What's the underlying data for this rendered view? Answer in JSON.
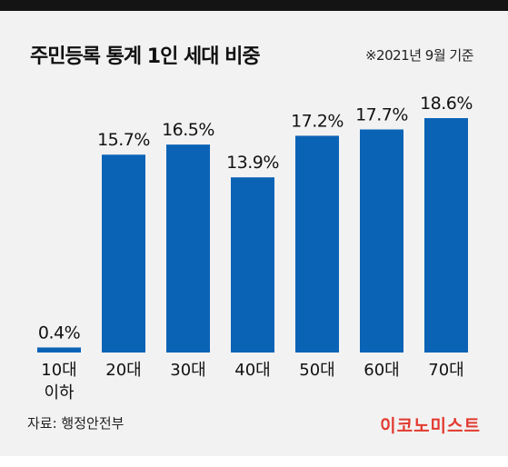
{
  "title": "주민등록 통계 1인 세대 비중",
  "note": "※2021년 9월 기준",
  "source": "자료: 행정안전부",
  "brand": "이코노미스트",
  "colors": {
    "bar": "#0b63b6",
    "background": "#f2f2f2",
    "brand": "#e23a2f",
    "topbar": "#141414"
  },
  "chart_data": {
    "type": "bar",
    "categories": [
      "10대\n이하",
      "20대",
      "30대",
      "40대",
      "50대",
      "60대",
      "70대"
    ],
    "values": [
      0.4,
      15.7,
      16.5,
      13.9,
      17.2,
      17.7,
      18.6
    ],
    "value_labels": [
      "0.4%",
      "15.7%",
      "16.5%",
      "13.9%",
      "17.2%",
      "17.7%",
      "18.6%"
    ],
    "unit": "%",
    "ylim": [
      0,
      18.6
    ],
    "grid": false,
    "legend": "none"
  }
}
